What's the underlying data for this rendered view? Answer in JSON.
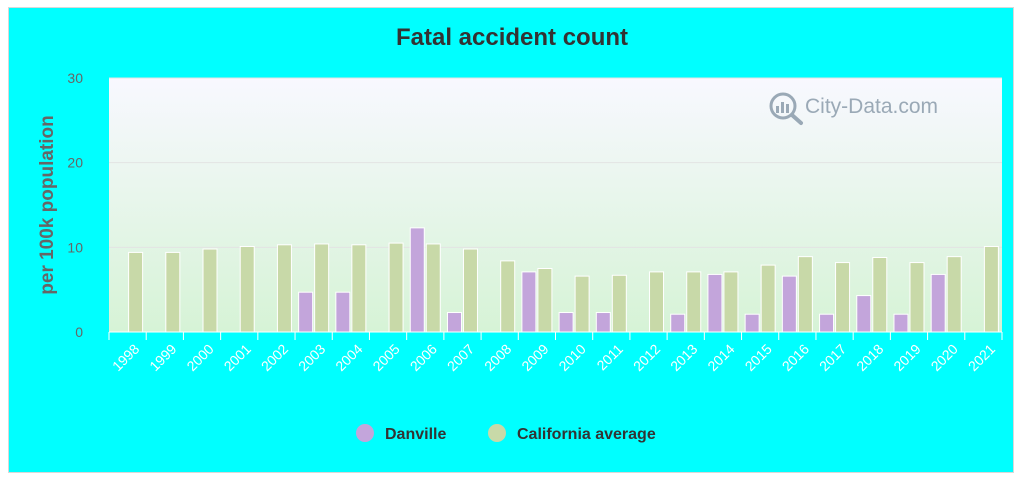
{
  "chart_data": {
    "type": "bar",
    "title": "Fatal accident count",
    "ylabel": "per 100k population",
    "xlabel": "",
    "ylim": [
      0,
      30
    ],
    "yticks": [
      0,
      10,
      20,
      30
    ],
    "grid": true,
    "legend_position": "bottom-center",
    "categories": [
      "1998",
      "1999",
      "2000",
      "2001",
      "2002",
      "2003",
      "2004",
      "2005",
      "2006",
      "2007",
      "2008",
      "2009",
      "2010",
      "2011",
      "2012",
      "2013",
      "2014",
      "2015",
      "2016",
      "2017",
      "2018",
      "2019",
      "2020",
      "2021"
    ],
    "series": [
      {
        "name": "Danville",
        "color": "#c3a5db",
        "values": [
          null,
          null,
          null,
          null,
          null,
          4.7,
          4.7,
          null,
          12.3,
          2.3,
          null,
          7.1,
          2.3,
          2.3,
          null,
          2.1,
          6.8,
          2.1,
          6.6,
          2.1,
          4.3,
          2.1,
          6.8,
          null
        ]
      },
      {
        "name": "California average",
        "color": "#c8d9a8",
        "values": [
          9.4,
          9.4,
          9.8,
          10.1,
          10.3,
          10.4,
          10.3,
          10.5,
          10.4,
          9.8,
          8.4,
          7.5,
          6.6,
          6.7,
          7.1,
          7.1,
          7.1,
          7.9,
          8.9,
          8.2,
          8.8,
          8.2,
          8.9,
          10.1
        ]
      }
    ]
  },
  "watermark": {
    "text": "City-Data.com",
    "icon": "magnifier-chart-icon"
  },
  "colors": {
    "background": "#00ffff",
    "plot_gradient_top": "#f8f8ff",
    "plot_gradient_bottom": "#d6f3d6"
  }
}
